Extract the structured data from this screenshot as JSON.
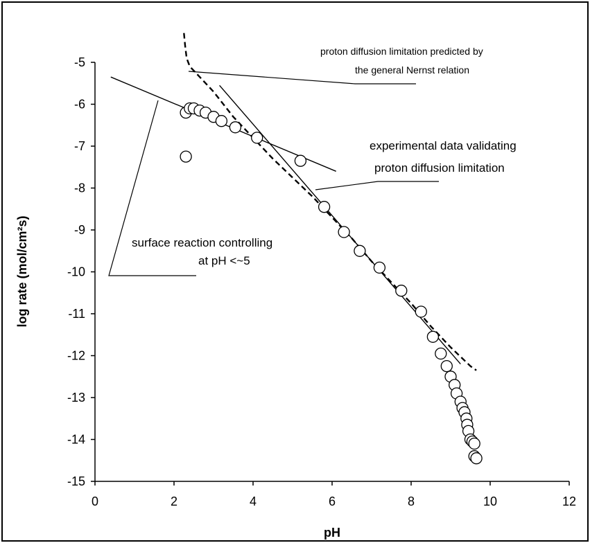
{
  "chart_data": {
    "type": "scatter",
    "xlabel": "pH",
    "ylabel": "log rate (mol/cm²s)",
    "xlim": [
      0,
      12
    ],
    "ylim": [
      -15,
      -5
    ],
    "xticks": [
      0,
      2,
      4,
      6,
      8,
      10,
      12
    ],
    "yticks": [
      -5,
      -6,
      -7,
      -8,
      -9,
      -10,
      -11,
      -12,
      -13,
      -14,
      -15
    ],
    "grid": false,
    "legend": "none",
    "series": [
      {
        "kind": "markers",
        "marker": "open-circle",
        "points": [
          [
            2.3,
            -7.25
          ],
          [
            2.3,
            -6.2
          ],
          [
            2.4,
            -6.1
          ],
          [
            2.5,
            -6.1
          ],
          [
            2.65,
            -6.15
          ],
          [
            2.8,
            -6.2
          ],
          [
            3.0,
            -6.3
          ],
          [
            3.2,
            -6.4
          ],
          [
            3.55,
            -6.55
          ],
          [
            4.1,
            -6.8
          ],
          [
            5.2,
            -7.35
          ],
          [
            5.8,
            -8.45
          ],
          [
            6.3,
            -9.05
          ],
          [
            6.7,
            -9.5
          ],
          [
            7.2,
            -9.9
          ],
          [
            7.75,
            -10.45
          ],
          [
            8.25,
            -10.95
          ],
          [
            8.55,
            -11.55
          ],
          [
            8.75,
            -11.95
          ],
          [
            8.9,
            -12.25
          ],
          [
            9.0,
            -12.5
          ],
          [
            9.1,
            -12.7
          ],
          [
            9.15,
            -12.9
          ],
          [
            9.25,
            -13.1
          ],
          [
            9.3,
            -13.25
          ],
          [
            9.35,
            -13.35
          ],
          [
            9.4,
            -13.5
          ],
          [
            9.42,
            -13.65
          ],
          [
            9.45,
            -13.8
          ],
          [
            9.5,
            -14.0
          ],
          [
            9.55,
            -14.05
          ],
          [
            9.6,
            -14.1
          ],
          [
            9.6,
            -14.4
          ],
          [
            9.65,
            -14.45
          ]
        ]
      },
      {
        "kind": "dashed-line",
        "points": [
          [
            2.25,
            -4.3
          ],
          [
            2.28,
            -4.6
          ],
          [
            2.32,
            -4.9
          ],
          [
            2.4,
            -5.1
          ],
          [
            2.6,
            -5.3
          ],
          [
            3.0,
            -5.7
          ],
          [
            3.5,
            -6.3
          ],
          [
            4.0,
            -6.8
          ],
          [
            4.5,
            -7.3
          ],
          [
            5.0,
            -7.75
          ],
          [
            5.5,
            -8.2
          ],
          [
            6.0,
            -8.7
          ],
          [
            6.5,
            -9.2
          ],
          [
            7.0,
            -9.75
          ],
          [
            7.5,
            -10.25
          ],
          [
            8.0,
            -10.75
          ],
          [
            8.5,
            -11.3
          ],
          [
            9.0,
            -11.8
          ],
          [
            9.5,
            -12.25
          ],
          [
            9.65,
            -12.35
          ]
        ]
      },
      {
        "kind": "solid-line",
        "points": [
          [
            0.4,
            -5.35
          ],
          [
            6.1,
            -7.6
          ]
        ]
      },
      {
        "kind": "solid-line",
        "points": [
          [
            3.15,
            -5.55
          ],
          [
            9.25,
            -12.2
          ]
        ]
      }
    ],
    "annotations": [
      {
        "lines": [
          "proton diffusion limitation predicted by",
          "the general Nernst relation"
        ]
      },
      {
        "lines": [
          "experimental data validating",
          "proton diffusion limitation"
        ]
      },
      {
        "lines": [
          "surface reaction controlling",
          "at pH <~5"
        ]
      }
    ]
  }
}
